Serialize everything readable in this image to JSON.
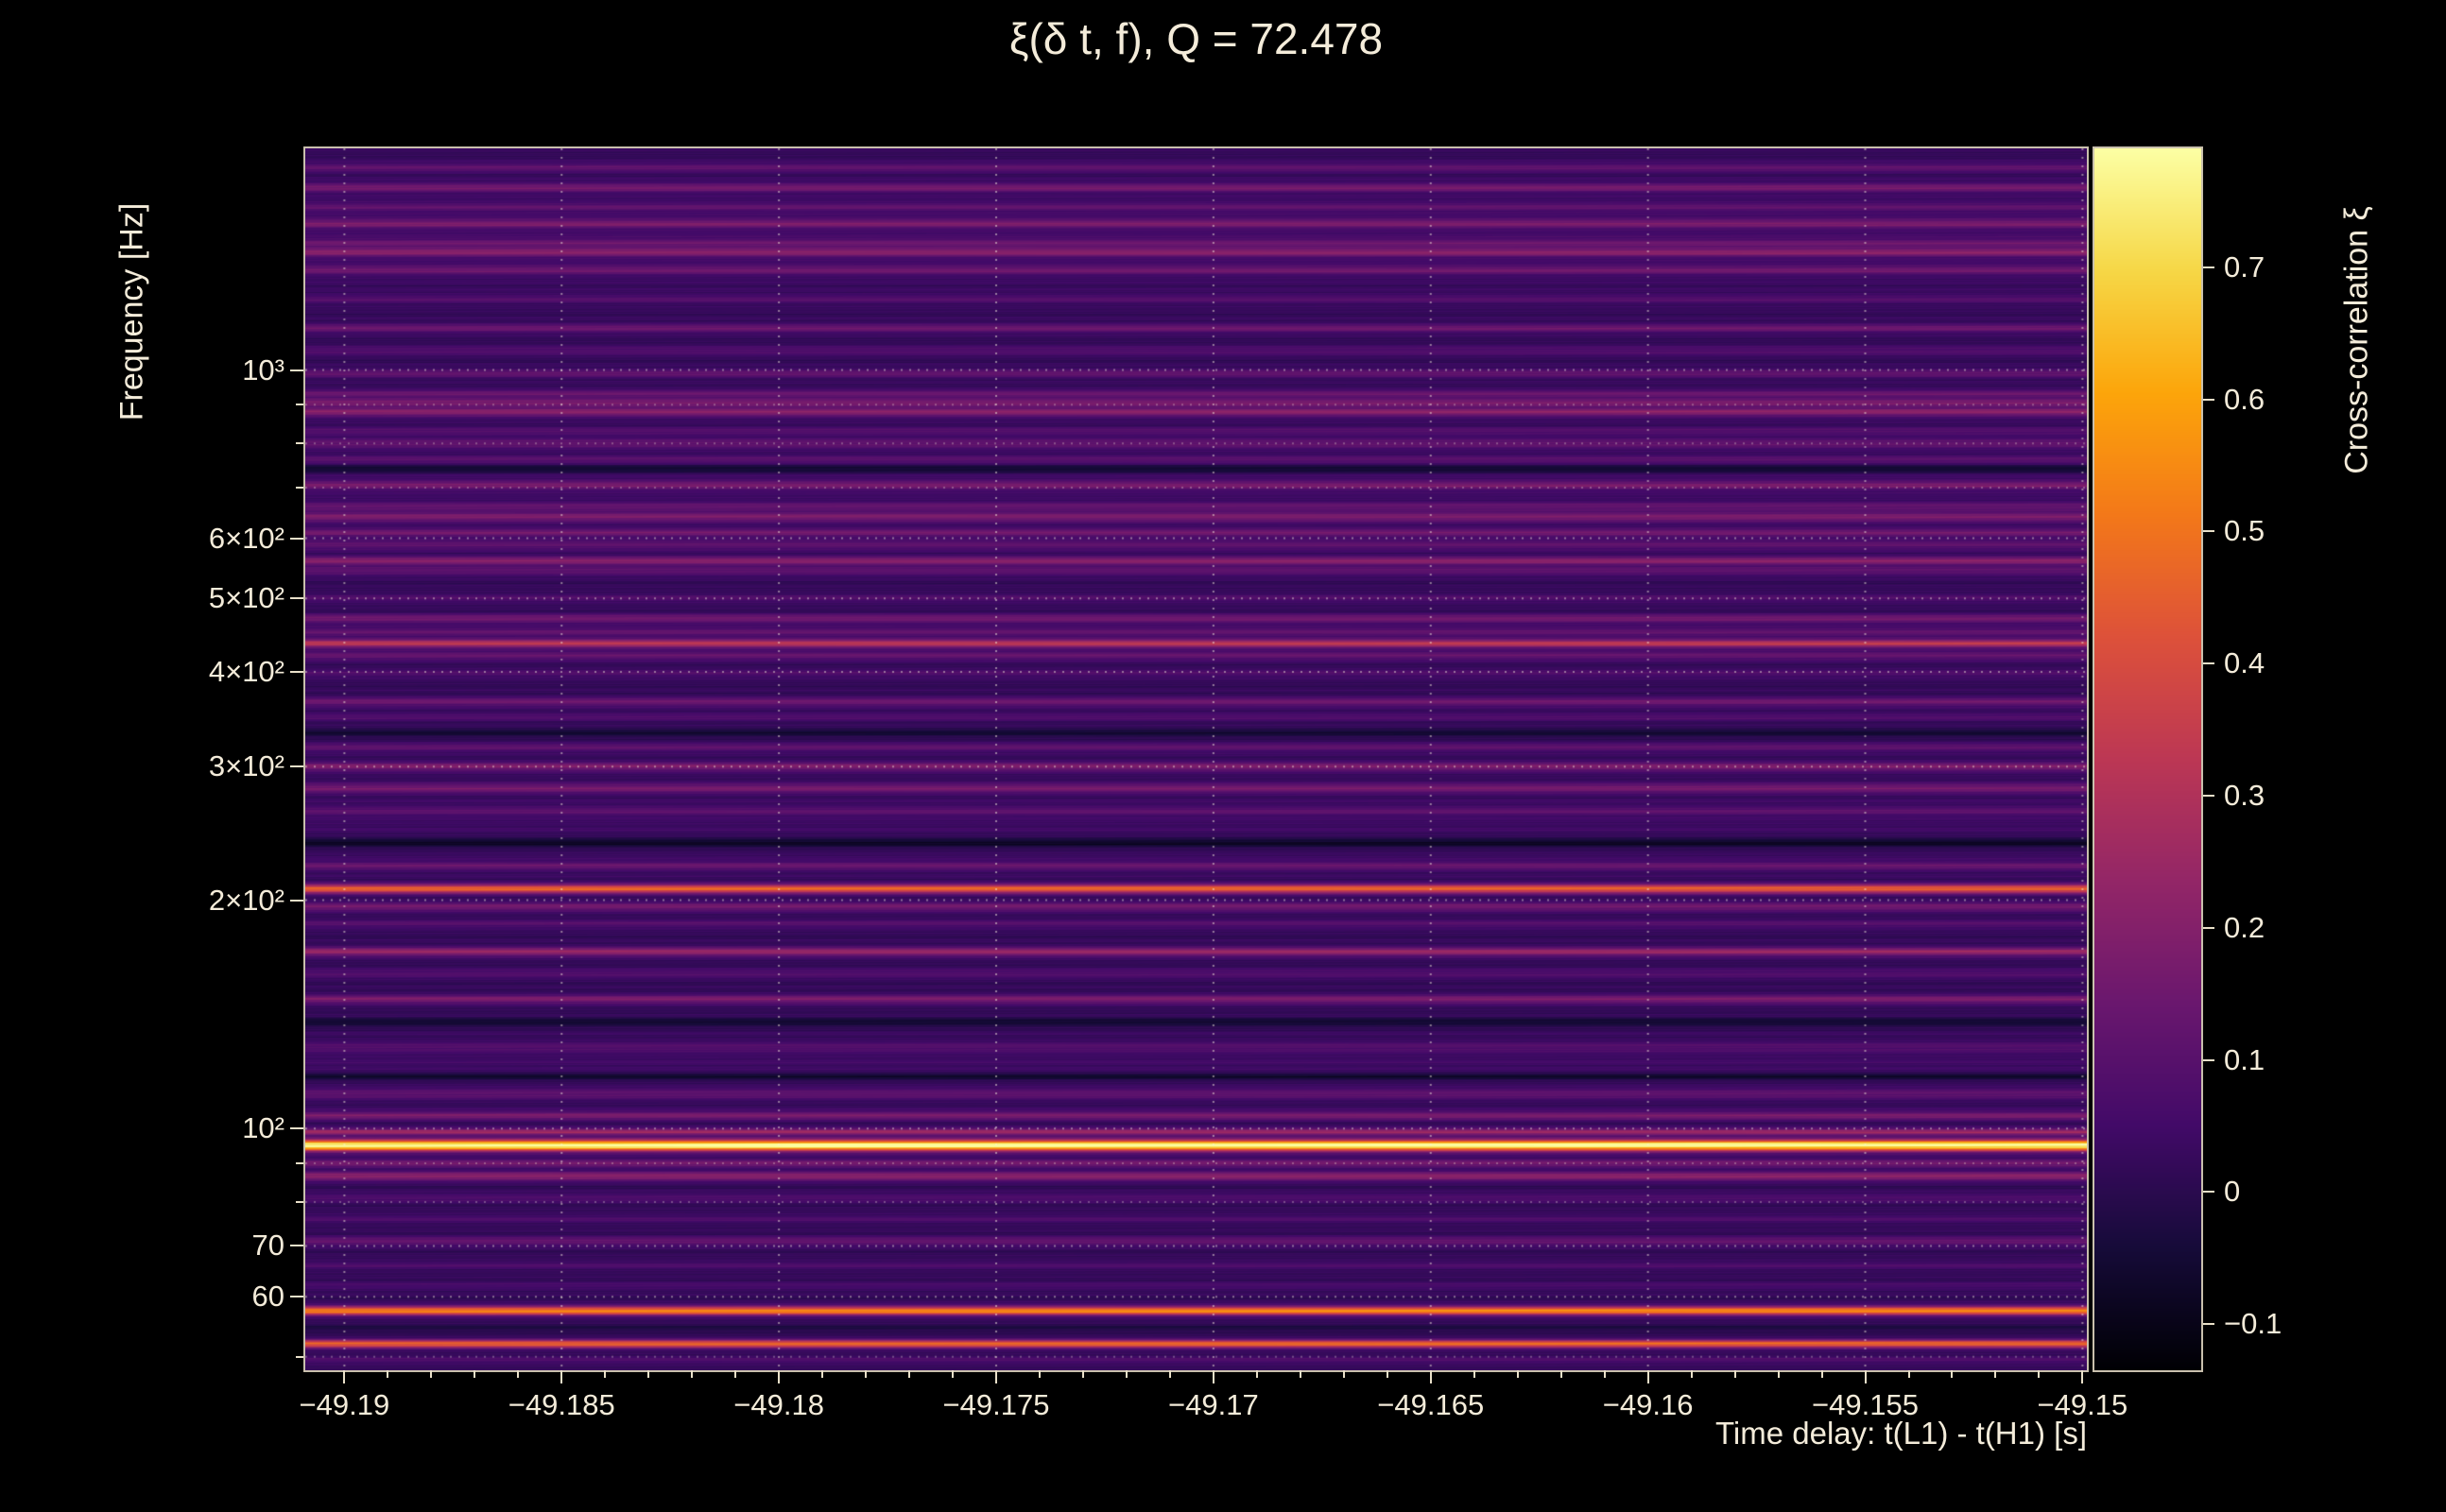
{
  "title": "ξ(δ t, f), Q = 72.478",
  "colors": {
    "background": "#000000",
    "text": "#f4ecda",
    "axis": "#ded5be",
    "grid": "#f7efde"
  },
  "chart_data": {
    "type": "heatmap",
    "title": "ξ(δ t, f), Q = 72.478",
    "q_value": 72.478,
    "xlabel": "Time delay: t(L1) - t(H1) [s]",
    "ylabel": "Frequency [Hz]",
    "x_range": [
      -49.1909,
      -49.1499
    ],
    "x_major_ticks": [
      -49.19,
      -49.185,
      -49.18,
      -49.175,
      -49.17,
      -49.165,
      -49.16,
      -49.155,
      -49.15
    ],
    "x_tick_labels": [
      "−49.19",
      "−49.185",
      "−49.18",
      "−49.175",
      "−49.17",
      "−49.165",
      "−49.16",
      "−49.155",
      "−49.15"
    ],
    "x_minor_step": 0.001,
    "y_scale": "log",
    "y_range": [
      48,
      1960
    ],
    "y_major_ticks": [
      1000,
      600,
      500,
      400,
      300,
      200,
      100,
      70,
      60
    ],
    "y_tick_labels": [
      "10³",
      "6×10²",
      "5×10²",
      "4×10²",
      "3×10²",
      "2×10²",
      "10²",
      "70",
      "60"
    ],
    "y_minor_ticks": [
      50,
      80,
      90,
      700,
      800,
      900
    ],
    "grid": true,
    "colorbar": {
      "label": "Cross-correlation ξ",
      "ticks": [
        0.7,
        0.6,
        0.5,
        0.4,
        0.3,
        0.2,
        0.1,
        0,
        -0.1
      ],
      "tick_labels": [
        "0.7",
        "0.6",
        "0.5",
        "0.4",
        "0.3",
        "0.2",
        "0.1",
        "0",
        "−0.1"
      ],
      "vmin": -0.135,
      "vmax": 0.79,
      "position": "right"
    },
    "colormap": {
      "name": "inferno",
      "stops": [
        [
          0,
          0,
          4
        ],
        [
          22,
          11,
          57
        ],
        [
          66,
          10,
          104
        ],
        [
          106,
          23,
          110
        ],
        [
          147,
          38,
          103
        ],
        [
          188,
          55,
          84
        ],
        [
          221,
          81,
          58
        ],
        [
          243,
          120,
          25
        ],
        [
          252,
          165,
          10
        ],
        [
          246,
          215,
          70
        ],
        [
          252,
          255,
          164
        ]
      ]
    },
    "background_value": 0.02,
    "bands_format": [
      "frequency_hz",
      "xi_value",
      "width_log10_optional"
    ],
    "bands": [
      [
        1850,
        0.09
      ],
      [
        1740,
        0.13
      ],
      [
        1640,
        0.07
      ],
      [
        1560,
        0.13
      ],
      [
        1470,
        0.09
      ],
      [
        1430,
        0.16
      ],
      [
        1355,
        0.11
      ],
      [
        1240,
        0.06
      ],
      [
        1135,
        0.12
      ],
      [
        1060,
        0.07
      ],
      [
        990,
        0.1
      ],
      [
        930,
        0.11
      ],
      [
        905,
        0.15
      ],
      [
        880,
        0.18
      ],
      [
        830,
        0.06
      ],
      [
        800,
        0.1
      ],
      [
        760,
        0.07
      ],
      [
        742,
        -0.1
      ],
      [
        705,
        0.13
      ],
      [
        660,
        0.09
      ],
      [
        640,
        0.15
      ],
      [
        610,
        0.12
      ],
      [
        588,
        0.09
      ],
      [
        560,
        0.18
      ],
      [
        543,
        0.09
      ],
      [
        500,
        0.06
      ],
      [
        470,
        0.14
      ],
      [
        452,
        0.1
      ],
      [
        436,
        0.3
      ],
      [
        420,
        0.11
      ],
      [
        398,
        0.06
      ],
      [
        365,
        0.13
      ],
      [
        349,
        0.06
      ],
      [
        332,
        -0.07
      ],
      [
        318,
        0.09
      ],
      [
        300,
        0.16
      ],
      [
        281,
        0.14
      ],
      [
        262,
        0.07
      ],
      [
        238,
        -0.11,
        0.005
      ],
      [
        222,
        0.1
      ],
      [
        207,
        0.44
      ],
      [
        196,
        0.14
      ],
      [
        186,
        0.07
      ],
      [
        171,
        0.22
      ],
      [
        160,
        0.07
      ],
      [
        148,
        0.16
      ],
      [
        138,
        -0.08
      ],
      [
        128,
        0.06
      ],
      [
        117,
        -0.1
      ],
      [
        111,
        0.09
      ],
      [
        104,
        0.15
      ],
      [
        99,
        0.24,
        0.003
      ],
      [
        95,
        0.78,
        0.005
      ],
      [
        90,
        0.14
      ],
      [
        86.5,
        0.2
      ],
      [
        81,
        0.06
      ],
      [
        76,
        0.05
      ],
      [
        71,
        0.11
      ],
      [
        66,
        0.05
      ],
      [
        62,
        0.04
      ],
      [
        57.5,
        0.52,
        0.004
      ],
      [
        54.5,
        -0.04
      ],
      [
        52,
        0.46,
        0.0035
      ],
      [
        49.5,
        0.05
      ],
      [
        1500,
        0.03,
        0.05
      ],
      [
        700,
        0.02,
        0.06
      ],
      [
        250,
        0.02,
        0.05
      ],
      [
        120,
        0.025,
        0.03
      ]
    ]
  }
}
